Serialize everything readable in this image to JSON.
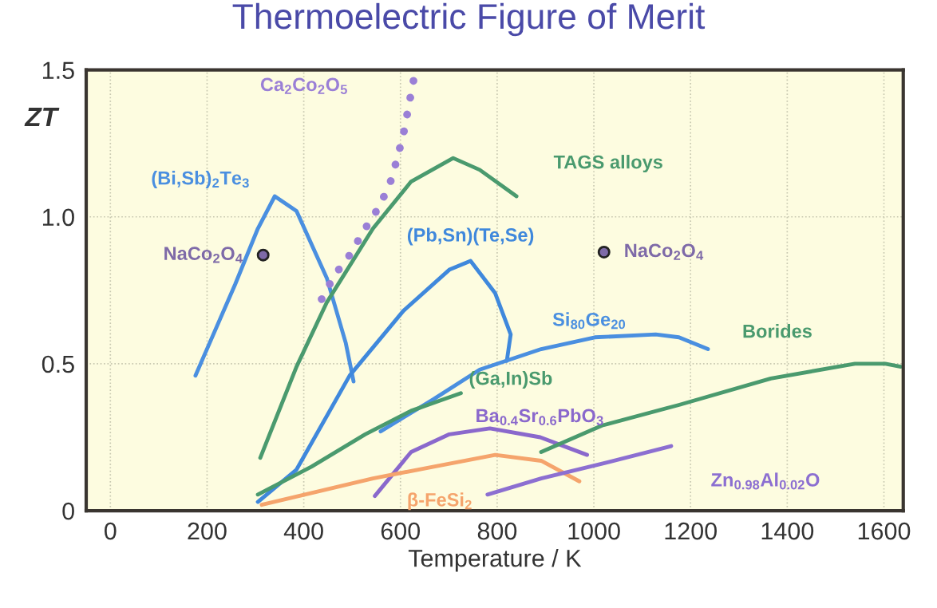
{
  "chart_data": {
    "type": "line",
    "title": "Thermoelectric Figure of Merit",
    "xlabel": "Temperature / K",
    "ylabel": "ZT",
    "xlim": [
      -50,
      1640
    ],
    "ylim": [
      0,
      1.5
    ],
    "xticks": [
      0,
      200,
      400,
      600,
      800,
      1000,
      1200,
      1400,
      1600
    ],
    "yticks": [
      0,
      0.5,
      {
        "value": 1,
        "label": "1.0"
      },
      1.5
    ],
    "grid": true,
    "series": [
      {
        "name": "(Bi,Sb)$_{2}$Te$_{3}$",
        "color": "#4a8fe0",
        "x": [
          176,
          258,
          305,
          340,
          385,
          448,
          487,
          503
        ],
        "values": [
          0.46,
          0.77,
          0.96,
          1.07,
          1.02,
          0.79,
          0.57,
          0.44
        ]
      },
      {
        "name": "Ca$_{2}$Co$_{2}$O$_{5}$",
        "color": "#9a7fd6",
        "line_style": "dotted",
        "x": [
          437,
          463,
          495,
          527,
          558,
          582,
          606,
          622,
          630
        ],
        "values": [
          0.72,
          0.8,
          0.87,
          0.96,
          1.04,
          1.13,
          1.28,
          1.42,
          1.49
        ]
      },
      {
        "name": "TAGS alloys",
        "color": "#4a9a6e",
        "x": [
          310,
          385,
          448,
          543,
          622,
          709,
          764,
          840
        ],
        "values": [
          0.18,
          0.49,
          0.71,
          0.96,
          1.12,
          1.2,
          1.16,
          1.07
        ]
      },
      {
        "name": "(Pb,Sn)(Te,Se)",
        "color": "#3f88dc",
        "x": [
          305,
          385,
          495,
          606,
          701,
          745,
          796,
          828,
          820
        ],
        "values": [
          0.03,
          0.14,
          0.46,
          0.68,
          0.82,
          0.85,
          0.74,
          0.6,
          0.51
        ]
      },
      {
        "name": "Si$_{80}$Ge$_{20}$",
        "color": "#4a8fe0",
        "x": [
          559,
          669,
          764,
          891,
          1002,
          1128,
          1176,
          1236
        ],
        "values": [
          0.27,
          0.38,
          0.48,
          0.55,
          0.59,
          0.6,
          0.59,
          0.55
        ]
      },
      {
        "name": "(Ga,In)Sb",
        "color": "#4a9a6e",
        "x": [
          305,
          416,
          527,
          622,
          725
        ],
        "values": [
          0.055,
          0.15,
          0.26,
          0.34,
          0.4
        ]
      },
      {
        "name": "Ba$_{0.4}$Sr$_{0.6}$PbO$_{3}$",
        "color": "#8a68cc",
        "x": [
          547,
          622,
          701,
          785,
          889,
          986
        ],
        "values": [
          0.05,
          0.2,
          0.26,
          0.28,
          0.25,
          0.19
        ]
      },
      {
        "name": "β-FeSi$_{2}$",
        "color": "#f5a46c",
        "x": [
          313,
          416,
          543,
          669,
          796,
          891,
          970
        ],
        "values": [
          0.02,
          0.06,
          0.11,
          0.15,
          0.19,
          0.17,
          0.1
        ]
      },
      {
        "name": "Zn$_{0.98}$Al$_{0.02}$O",
        "color": "#8c6fd1",
        "x": [
          780,
          891,
          1017,
          1160
        ],
        "values": [
          0.055,
          0.11,
          0.16,
          0.22
        ]
      },
      {
        "name": "Borides",
        "color": "#4a9a6e",
        "x": [
          891,
          1017,
          1176,
          1366,
          1540,
          1603,
          1635
        ],
        "values": [
          0.2,
          0.29,
          0.36,
          0.45,
          0.5,
          0.5,
          0.49
        ]
      },
      {
        "name": "NaCo$_{2}$O$_{4}$",
        "type": "scatter",
        "marker": "circle",
        "color": "#7e6aa8",
        "x": [
          316,
          1021
        ],
        "values": [
          0.87,
          0.88
        ]
      }
    ]
  }
}
